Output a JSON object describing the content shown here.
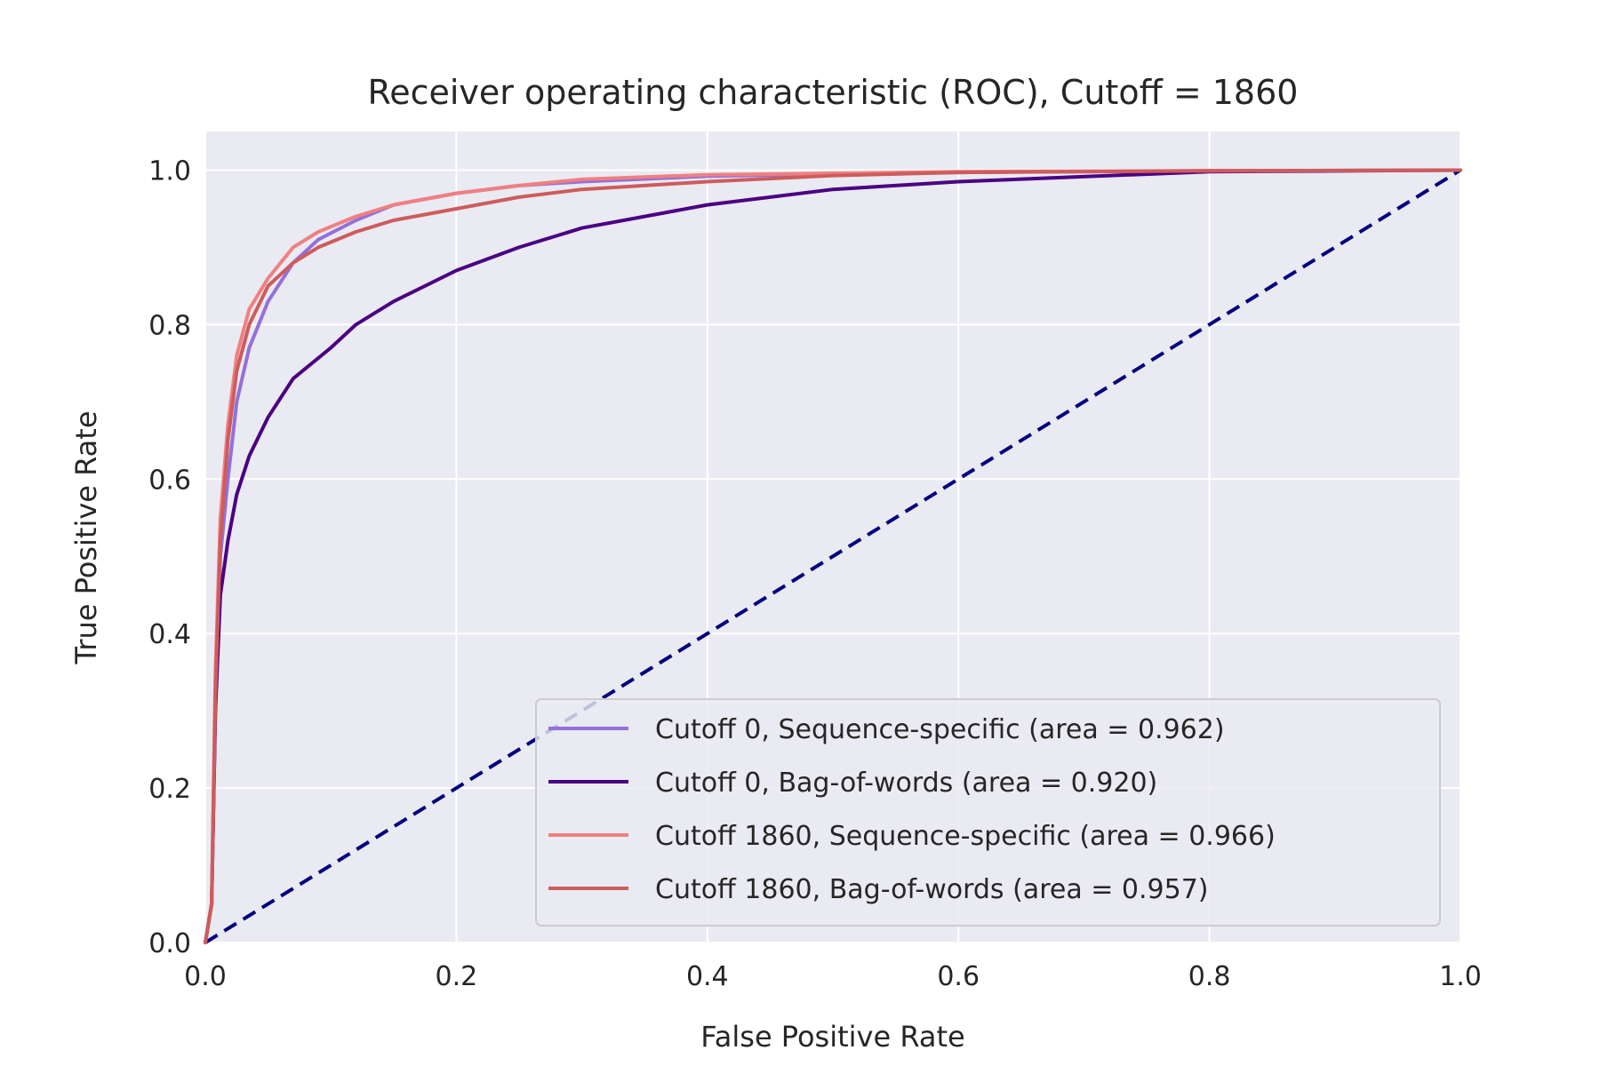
{
  "chart_data": {
    "type": "line",
    "title": "Receiver operating characteristic (ROC), Cutoff = 1860",
    "xlabel": "False Positive Rate",
    "ylabel": "True Positive Rate",
    "xlim": [
      0.0,
      1.0
    ],
    "ylim": [
      0.0,
      1.05
    ],
    "xticks": [
      "0.0",
      "0.2",
      "0.4",
      "0.6",
      "0.8",
      "1.0"
    ],
    "yticks": [
      "0.0",
      "0.2",
      "0.4",
      "0.6",
      "0.8",
      "1.0"
    ],
    "grid": true,
    "legend_position": "lower-right",
    "colors": {
      "background": "#eaeaf2",
      "grid": "#ffffff",
      "diagonal": "#000080"
    },
    "series": [
      {
        "name": "Cutoff 0, Sequence-specific (area = 0.962)",
        "color": "#9370db",
        "x": [
          0,
          0.005,
          0.008,
          0.012,
          0.018,
          0.025,
          0.035,
          0.05,
          0.07,
          0.09,
          0.12,
          0.15,
          0.2,
          0.25,
          0.3,
          0.4,
          0.5,
          0.6,
          0.8,
          1.0
        ],
        "y": [
          0,
          0.05,
          0.3,
          0.5,
          0.6,
          0.7,
          0.77,
          0.83,
          0.88,
          0.91,
          0.935,
          0.955,
          0.97,
          0.98,
          0.985,
          0.992,
          0.995,
          0.997,
          0.999,
          1.0
        ]
      },
      {
        "name": "Cutoff 0, Bag-of-words (area = 0.920)",
        "color": "#4b0082",
        "x": [
          0,
          0.005,
          0.008,
          0.012,
          0.018,
          0.025,
          0.035,
          0.05,
          0.07,
          0.1,
          0.12,
          0.15,
          0.2,
          0.25,
          0.3,
          0.4,
          0.5,
          0.6,
          0.8,
          1.0
        ],
        "y": [
          0,
          0.05,
          0.3,
          0.45,
          0.52,
          0.58,
          0.63,
          0.68,
          0.73,
          0.77,
          0.8,
          0.83,
          0.87,
          0.9,
          0.925,
          0.955,
          0.975,
          0.985,
          0.998,
          1.0
        ]
      },
      {
        "name": "Cutoff 1860, Sequence-specific (area = 0.966)",
        "color": "#f08080",
        "x": [
          0,
          0.005,
          0.008,
          0.012,
          0.018,
          0.025,
          0.035,
          0.05,
          0.07,
          0.09,
          0.12,
          0.15,
          0.2,
          0.25,
          0.3,
          0.4,
          0.5,
          0.6,
          0.8,
          1.0
        ],
        "y": [
          0,
          0.05,
          0.35,
          0.55,
          0.67,
          0.76,
          0.82,
          0.86,
          0.9,
          0.92,
          0.94,
          0.955,
          0.97,
          0.98,
          0.988,
          0.994,
          0.996,
          0.998,
          0.999,
          1.0
        ]
      },
      {
        "name": "Cutoff 1860, Bag-of-words (area = 0.957)",
        "color": "#cd5c5c",
        "x": [
          0,
          0.005,
          0.008,
          0.012,
          0.018,
          0.025,
          0.035,
          0.05,
          0.07,
          0.09,
          0.12,
          0.15,
          0.2,
          0.25,
          0.3,
          0.4,
          0.5,
          0.6,
          0.8,
          1.0
        ],
        "y": [
          0,
          0.05,
          0.32,
          0.52,
          0.65,
          0.74,
          0.8,
          0.85,
          0.88,
          0.9,
          0.92,
          0.935,
          0.95,
          0.965,
          0.975,
          0.985,
          0.993,
          0.997,
          0.999,
          1.0
        ]
      }
    ],
    "reference_line": {
      "x": [
        0,
        1
      ],
      "y": [
        0,
        1
      ],
      "style": "dashed"
    }
  }
}
